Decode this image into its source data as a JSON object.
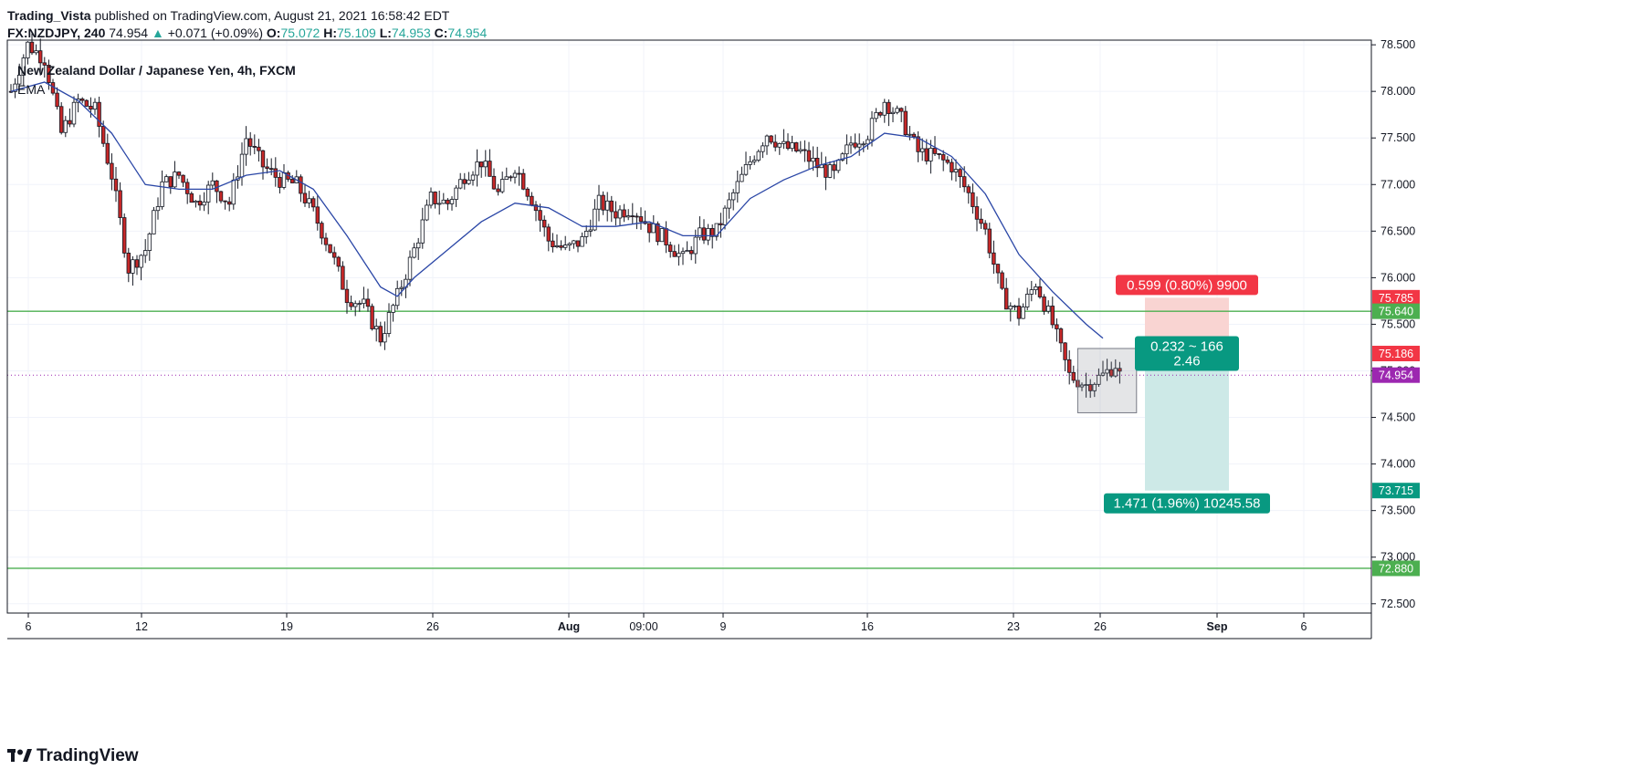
{
  "header": {
    "author": "Trading_Vista",
    "published": "published on TradingView.com, August 21, 2021 16:58:42 EDT",
    "symbol": "FX:NZDJPY, 240",
    "last": "74.954",
    "change_arrow": "▲",
    "change": "+0.071 (+0.09%)",
    "o_label": "O:",
    "o": "75.072",
    "h_label": "H:",
    "h": "75.109",
    "l_label": "L:",
    "l": "74.953",
    "c_label": "C:",
    "c": "74.954"
  },
  "legend": {
    "title": "New Zealand Dollar / Japanese Yen, 4h, FXCM",
    "indicator": "EMA"
  },
  "footer": {
    "brand": "TradingView",
    "logo_icon": "tradingview-logo-icon"
  },
  "colors": {
    "up": "#26a69a",
    "down": "#ef5350",
    "candle_up_fill": "#ffffff",
    "candle_down_fill": "#c62828",
    "ema": "#2a46a6",
    "hline": "#4caf50",
    "stop_zone": "#f9d4d2",
    "target_zone": "#cde9e7"
  },
  "chart_data": {
    "type": "candlestick",
    "title": "New Zealand Dollar / Japanese Yen, 4h, FXCM",
    "symbol": "FX:NZDJPY",
    "interval": "4h",
    "ylim": [
      72.4,
      78.55
    ],
    "y_ticks": [
      "78.500",
      "78.000",
      "77.500",
      "77.000",
      "76.500",
      "76.000",
      "75.500",
      "75.000",
      "74.500",
      "74.000",
      "73.500",
      "73.000",
      "72.500"
    ],
    "x_ticks": [
      "6",
      "12",
      "19",
      "26",
      "Aug",
      "09:00",
      "9",
      "16",
      "23",
      "26",
      "Sep",
      "6"
    ],
    "close_path": [
      [
        0,
        78.0
      ],
      [
        4,
        78.5
      ],
      [
        8,
        78.35
      ],
      [
        12,
        77.55
      ],
      [
        16,
        77.9
      ],
      [
        20,
        77.8
      ],
      [
        24,
        77.1
      ],
      [
        28,
        76.1
      ],
      [
        32,
        76.3
      ],
      [
        36,
        77.0
      ],
      [
        40,
        77.1
      ],
      [
        44,
        76.8
      ],
      [
        48,
        77.0
      ],
      [
        52,
        76.8
      ],
      [
        56,
        77.5
      ],
      [
        60,
        77.2
      ],
      [
        64,
        77.05
      ],
      [
        68,
        77.0
      ],
      [
        72,
        76.7
      ],
      [
        76,
        76.3
      ],
      [
        80,
        75.8
      ],
      [
        84,
        75.7
      ],
      [
        88,
        75.35
      ],
      [
        92,
        75.8
      ],
      [
        96,
        76.3
      ],
      [
        100,
        76.85
      ],
      [
        104,
        76.8
      ],
      [
        108,
        77.1
      ],
      [
        112,
        77.25
      ],
      [
        116,
        76.9
      ],
      [
        120,
        77.2
      ],
      [
        124,
        76.85
      ],
      [
        128,
        76.4
      ],
      [
        132,
        76.3
      ],
      [
        136,
        76.4
      ],
      [
        140,
        76.8
      ],
      [
        144,
        76.7
      ],
      [
        148,
        76.75
      ],
      [
        152,
        76.55
      ],
      [
        156,
        76.4
      ],
      [
        160,
        76.2
      ],
      [
        164,
        76.45
      ],
      [
        168,
        76.5
      ],
      [
        172,
        76.9
      ],
      [
        176,
        77.25
      ],
      [
        180,
        77.55
      ],
      [
        184,
        77.4
      ],
      [
        188,
        77.35
      ],
      [
        192,
        77.2
      ],
      [
        196,
        77.1
      ],
      [
        200,
        77.45
      ],
      [
        204,
        77.55
      ],
      [
        208,
        77.9
      ],
      [
        212,
        77.7
      ],
      [
        216,
        77.35
      ],
      [
        220,
        77.3
      ],
      [
        224,
        77.2
      ],
      [
        228,
        76.9
      ],
      [
        232,
        76.5
      ],
      [
        236,
        75.8
      ],
      [
        240,
        75.6
      ],
      [
        244,
        75.95
      ],
      [
        248,
        75.5
      ],
      [
        252,
        74.95
      ],
      [
        256,
        74.85
      ],
      [
        260,
        74.95
      ],
      [
        263,
        75.07
      ],
      [
        264,
        74.954
      ]
    ],
    "ema": [
      [
        0,
        78.0
      ],
      [
        8,
        78.1
      ],
      [
        16,
        77.9
      ],
      [
        24,
        77.55
      ],
      [
        32,
        77.0
      ],
      [
        40,
        76.95
      ],
      [
        48,
        76.95
      ],
      [
        56,
        77.1
      ],
      [
        64,
        77.15
      ],
      [
        72,
        76.95
      ],
      [
        80,
        76.45
      ],
      [
        88,
        75.9
      ],
      [
        92,
        75.8
      ],
      [
        96,
        76.0
      ],
      [
        104,
        76.3
      ],
      [
        112,
        76.6
      ],
      [
        120,
        76.8
      ],
      [
        128,
        76.75
      ],
      [
        136,
        76.55
      ],
      [
        144,
        76.55
      ],
      [
        152,
        76.6
      ],
      [
        160,
        76.45
      ],
      [
        168,
        76.45
      ],
      [
        176,
        76.85
      ],
      [
        184,
        77.05
      ],
      [
        192,
        77.2
      ],
      [
        200,
        77.3
      ],
      [
        208,
        77.55
      ],
      [
        216,
        77.5
      ],
      [
        224,
        77.3
      ],
      [
        232,
        76.9
      ],
      [
        240,
        76.25
      ],
      [
        248,
        75.85
      ],
      [
        256,
        75.5
      ],
      [
        260,
        75.35
      ]
    ],
    "horizontal_lines": [
      75.64,
      72.88
    ],
    "current_price": 74.954,
    "consolidation_box": {
      "x_from": 254,
      "x_to": 268,
      "top": 75.24,
      "bottom": 74.55
    },
    "position": {
      "x_from": 270,
      "x_to": 290,
      "entry": 75.186,
      "stop": 75.785,
      "target": 73.715,
      "stop_label": "0.599 (0.80%) 9900",
      "center_label_1": "0.232 ~ 166",
      "center_label_2": "2.46",
      "target_label": "1.471 (1.96%) 10245.58"
    },
    "price_tags": [
      {
        "value": 75.785,
        "label": "75.785",
        "color": "#f23645"
      },
      {
        "value": 75.64,
        "label": "75.640",
        "color": "#4caf50"
      },
      {
        "value": 75.186,
        "label": "75.186",
        "color": "#f23645"
      },
      {
        "value": 74.954,
        "label": "74.954",
        "color": "#9c27b0"
      },
      {
        "value": 73.715,
        "label": "73.715",
        "color": "#089981"
      },
      {
        "value": 72.88,
        "label": "72.880",
        "color": "#4caf50"
      }
    ]
  }
}
